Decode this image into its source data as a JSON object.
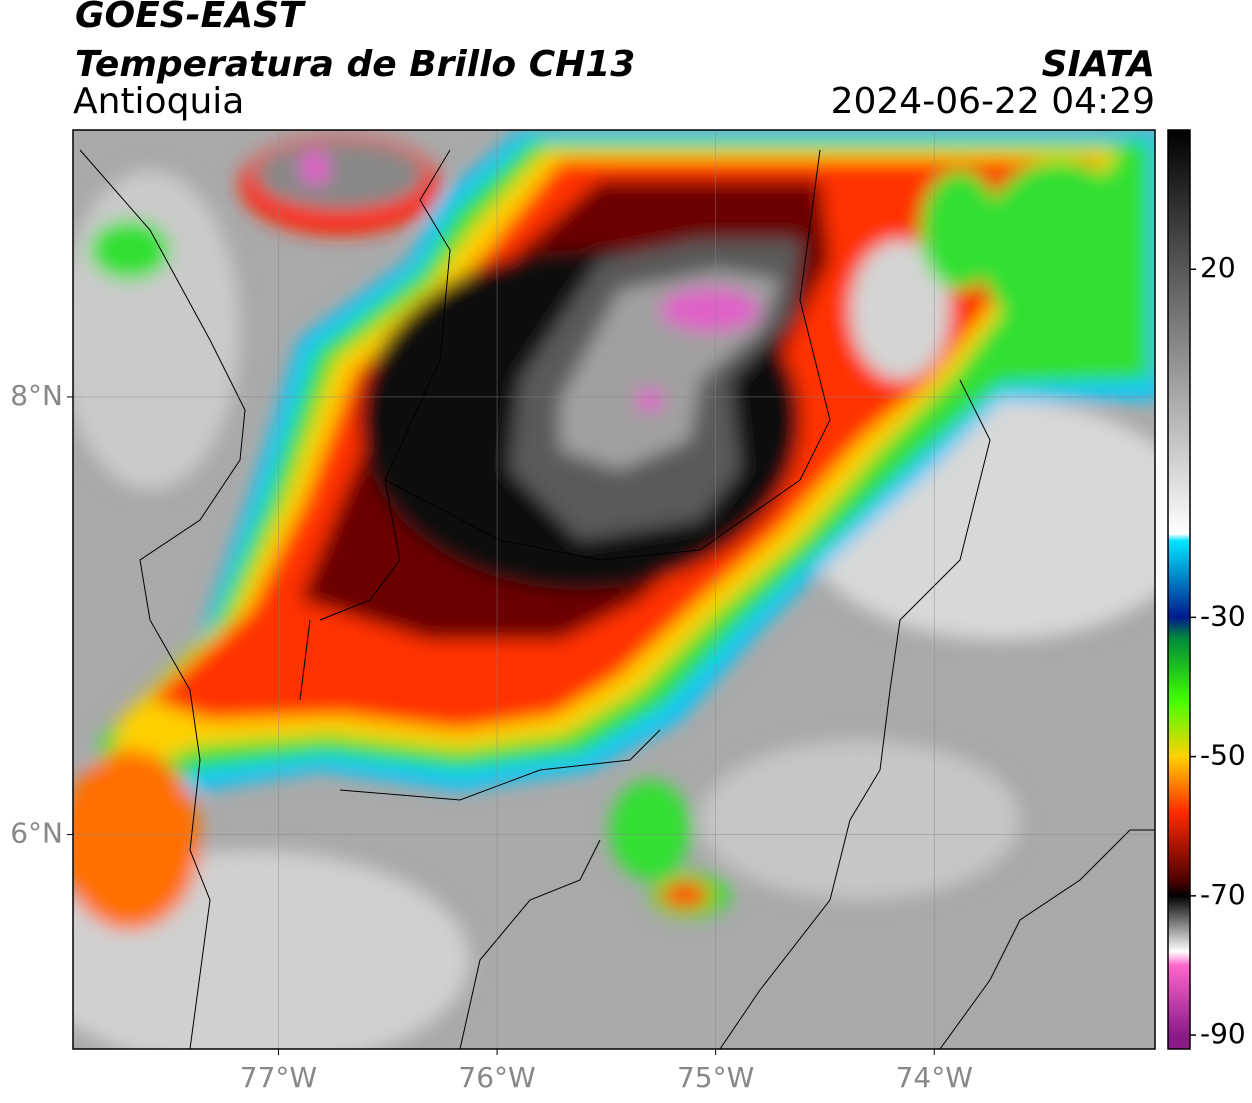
{
  "header": {
    "title": "GOES-EAST",
    "subtitle": "Temperatura de Brillo CH13",
    "region": "Antioquia",
    "source": "SIATA",
    "datetime": "2024-06-22 04:29"
  },
  "map": {
    "lonlim": [
      -77.94,
      -72.99
    ],
    "latlim": [
      5.02,
      9.22
    ],
    "lonticks": [
      {
        "value": -77,
        "label": "77°W"
      },
      {
        "value": -76,
        "label": "76°W"
      },
      {
        "value": -75,
        "label": "75°W"
      },
      {
        "value": -74,
        "label": "74°W"
      }
    ],
    "latticks": [
      {
        "value": 8,
        "label": "8°N"
      },
      {
        "value": 6,
        "label": "6°N"
      }
    ],
    "grid": true
  },
  "colorbar": {
    "lim": [
      -92,
      40
    ],
    "ticks": [
      20,
      -30,
      -50,
      -70,
      -90
    ],
    "stops": [
      {
        "value": 40,
        "color": "#000000"
      },
      {
        "value": -18,
        "color": "#ffffff"
      },
      {
        "value": -19,
        "color": "#00e5ff"
      },
      {
        "value": -30,
        "color": "#001a8c"
      },
      {
        "value": -33,
        "color": "#008a3a"
      },
      {
        "value": -42,
        "color": "#44ff00"
      },
      {
        "value": -50,
        "color": "#ffd200"
      },
      {
        "value": -58,
        "color": "#ff2a00"
      },
      {
        "value": -68,
        "color": "#4a0000"
      },
      {
        "value": -70,
        "color": "#000000"
      },
      {
        "value": -78,
        "color": "#ffffff"
      },
      {
        "value": -80,
        "color": "#ff66cc"
      },
      {
        "value": -90,
        "color": "#8a1a8a"
      }
    ]
  }
}
